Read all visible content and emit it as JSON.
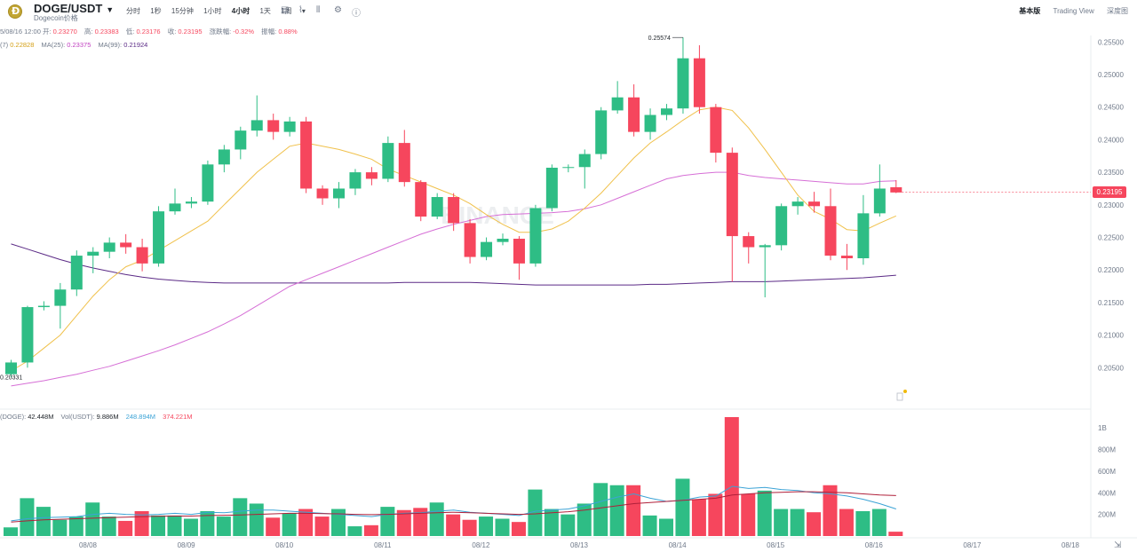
{
  "header": {
    "pair": "DOGE/USDT",
    "pair_sub": "Dogecoin价格",
    "intervals": [
      "分时",
      "1秒",
      "15分钟",
      "1小时",
      "4小时",
      "1天",
      "1周"
    ],
    "active_interval": "4小时",
    "views": [
      "基本版",
      "Trading View",
      "深度图"
    ],
    "active_view": "基本版"
  },
  "ohlc": {
    "time": "5/08/16 12:00",
    "open_label": "开:",
    "open": "0.23270",
    "high_label": "高:",
    "high": "0.23383",
    "low_label": "低:",
    "low": "0.23176",
    "close_label": "收:",
    "close": "0.23195",
    "change_label": "涨跌幅:",
    "change": "-0.32%",
    "amp_label": "振幅:",
    "amp": "0.88%"
  },
  "ma": {
    "ma7_label": "(7)",
    "ma7": "0.22828",
    "ma25_label": "MA(25):",
    "ma25": "0.23375",
    "ma99_label": "MA(99):",
    "ma99": "0.21924"
  },
  "volume_legend": {
    "vol_doge_label": "(DOGE):",
    "vol_doge": "42.448M",
    "vol_usdt_label": "Vol(USDT):",
    "vol_usdt": "9.886M",
    "ma5": "248.894M",
    "ma10": "374.221M"
  },
  "price_axis": {
    "ticks": [
      "0.25500",
      "0.25000",
      "0.24500",
      "0.24000",
      "0.23500",
      "0.23000",
      "0.22500",
      "0.22000",
      "0.21500",
      "0.21000",
      "0.20500"
    ],
    "current_price": "0.23195"
  },
  "volume_axis": {
    "ticks": [
      "1B",
      "800M",
      "600M",
      "400M",
      "200M"
    ]
  },
  "time_axis": {
    "ticks": [
      "08/08",
      "08/09",
      "08/10",
      "08/11",
      "08/12",
      "08/13",
      "08/14",
      "08/15",
      "08/16",
      "08/17",
      "08/18"
    ]
  },
  "annotations": {
    "high_label": "0.25574",
    "low_label": "0.20331"
  },
  "watermark": "BINANCE",
  "colors": {
    "up": "#2ebd85",
    "down": "#f6465d",
    "ma7": "#f0c14b",
    "ma25": "#d66fd6",
    "ma99": "#5b2a86"
  },
  "chart_data": {
    "type": "candlestick",
    "interval": "4小时",
    "candles": [
      {
        "o": 0.204,
        "c": 0.2058,
        "h": 0.2062,
        "l": 0.2035
      },
      {
        "o": 0.2058,
        "c": 0.2143,
        "h": 0.2145,
        "l": 0.205
      },
      {
        "o": 0.2143,
        "c": 0.2145,
        "h": 0.2152,
        "l": 0.2138
      },
      {
        "o": 0.2145,
        "c": 0.217,
        "h": 0.218,
        "l": 0.211
      },
      {
        "o": 0.217,
        "c": 0.2222,
        "h": 0.223,
        "l": 0.216
      },
      {
        "o": 0.2222,
        "c": 0.2228,
        "h": 0.2235,
        "l": 0.2195
      },
      {
        "o": 0.2228,
        "c": 0.2242,
        "h": 0.225,
        "l": 0.2218
      },
      {
        "o": 0.2242,
        "c": 0.2235,
        "h": 0.2255,
        "l": 0.2225
      },
      {
        "o": 0.2235,
        "c": 0.221,
        "h": 0.2248,
        "l": 0.2198
      },
      {
        "o": 0.221,
        "c": 0.229,
        "h": 0.2298,
        "l": 0.2205
      },
      {
        "o": 0.229,
        "c": 0.2302,
        "h": 0.2325,
        "l": 0.2285
      },
      {
        "o": 0.2302,
        "c": 0.2305,
        "h": 0.2312,
        "l": 0.2295
      },
      {
        "o": 0.2305,
        "c": 0.2362,
        "h": 0.2368,
        "l": 0.23
      },
      {
        "o": 0.2362,
        "c": 0.2385,
        "h": 0.2392,
        "l": 0.235
      },
      {
        "o": 0.2385,
        "c": 0.2414,
        "h": 0.242,
        "l": 0.237
      },
      {
        "o": 0.2414,
        "c": 0.243,
        "h": 0.2468,
        "l": 0.2405
      },
      {
        "o": 0.243,
        "c": 0.2412,
        "h": 0.244,
        "l": 0.24
      },
      {
        "o": 0.2412,
        "c": 0.2428,
        "h": 0.2435,
        "l": 0.2405
      },
      {
        "o": 0.2428,
        "c": 0.2325,
        "h": 0.2435,
        "l": 0.2318
      },
      {
        "o": 0.2325,
        "c": 0.231,
        "h": 0.233,
        "l": 0.23
      },
      {
        "o": 0.231,
        "c": 0.2325,
        "h": 0.2335,
        "l": 0.2295
      },
      {
        "o": 0.2325,
        "c": 0.235,
        "h": 0.2355,
        "l": 0.2315
      },
      {
        "o": 0.235,
        "c": 0.234,
        "h": 0.2358,
        "l": 0.233
      },
      {
        "o": 0.234,
        "c": 0.2395,
        "h": 0.2405,
        "l": 0.2335
      },
      {
        "o": 0.2395,
        "c": 0.2335,
        "h": 0.2415,
        "l": 0.2328
      },
      {
        "o": 0.2335,
        "c": 0.2282,
        "h": 0.2338,
        "l": 0.2275
      },
      {
        "o": 0.2282,
        "c": 0.2312,
        "h": 0.2318,
        "l": 0.2278
      },
      {
        "o": 0.2312,
        "c": 0.2272,
        "h": 0.2318,
        "l": 0.226
      },
      {
        "o": 0.2272,
        "c": 0.222,
        "h": 0.2278,
        "l": 0.221
      },
      {
        "o": 0.222,
        "c": 0.2243,
        "h": 0.225,
        "l": 0.2215
      },
      {
        "o": 0.2243,
        "c": 0.2248,
        "h": 0.2256,
        "l": 0.2238
      },
      {
        "o": 0.2248,
        "c": 0.221,
        "h": 0.2252,
        "l": 0.2185
      },
      {
        "o": 0.221,
        "c": 0.2295,
        "h": 0.23,
        "l": 0.2205
      },
      {
        "o": 0.2295,
        "c": 0.2357,
        "h": 0.2362,
        "l": 0.229
      },
      {
        "o": 0.2357,
        "c": 0.2358,
        "h": 0.2362,
        "l": 0.235
      },
      {
        "o": 0.2358,
        "c": 0.2378,
        "h": 0.2385,
        "l": 0.2325
      },
      {
        "o": 0.2378,
        "c": 0.2445,
        "h": 0.245,
        "l": 0.237
      },
      {
        "o": 0.2445,
        "c": 0.2465,
        "h": 0.249,
        "l": 0.244
      },
      {
        "o": 0.2465,
        "c": 0.2412,
        "h": 0.2485,
        "l": 0.2405
      },
      {
        "o": 0.2412,
        "c": 0.2438,
        "h": 0.2448,
        "l": 0.24
      },
      {
        "o": 0.2438,
        "c": 0.2448,
        "h": 0.2455,
        "l": 0.243
      },
      {
        "o": 0.2448,
        "c": 0.2525,
        "h": 0.2557,
        "l": 0.244
      },
      {
        "o": 0.2525,
        "c": 0.245,
        "h": 0.2545,
        "l": 0.244
      },
      {
        "o": 0.245,
        "c": 0.238,
        "h": 0.2455,
        "l": 0.2365
      },
      {
        "o": 0.238,
        "c": 0.2252,
        "h": 0.2388,
        "l": 0.2182
      },
      {
        "o": 0.2252,
        "c": 0.2235,
        "h": 0.2258,
        "l": 0.221
      },
      {
        "o": 0.2235,
        "c": 0.2238,
        "h": 0.224,
        "l": 0.2158
      },
      {
        "o": 0.2238,
        "c": 0.2298,
        "h": 0.2302,
        "l": 0.223
      },
      {
        "o": 0.2298,
        "c": 0.2305,
        "h": 0.2312,
        "l": 0.2285
      },
      {
        "o": 0.2305,
        "c": 0.2298,
        "h": 0.232,
        "l": 0.2288
      },
      {
        "o": 0.2298,
        "c": 0.2222,
        "h": 0.2325,
        "l": 0.2215
      },
      {
        "o": 0.2222,
        "c": 0.2218,
        "h": 0.224,
        "l": 0.22
      },
      {
        "o": 0.2218,
        "c": 0.2287,
        "h": 0.2315,
        "l": 0.2208
      },
      {
        "o": 0.2287,
        "c": 0.2325,
        "h": 0.2362,
        "l": 0.2282
      },
      {
        "o": 0.2327,
        "c": 0.2319,
        "h": 0.2338,
        "l": 0.2318
      }
    ],
    "volume": [
      80,
      350,
      270,
      150,
      180,
      310,
      180,
      140,
      230,
      190,
      190,
      160,
      230,
      180,
      350,
      300,
      170,
      210,
      250,
      180,
      250,
      90,
      100,
      270,
      240,
      260,
      310,
      200,
      150,
      180,
      160,
      130,
      430,
      250,
      200,
      300,
      490,
      470,
      470,
      190,
      160,
      530,
      340,
      390,
      1100,
      390,
      420,
      250,
      250,
      220,
      470,
      250,
      230,
      250,
      40
    ],
    "ma7": [
      0.2045,
      0.206,
      0.208,
      0.21,
      0.213,
      0.216,
      0.2185,
      0.2205,
      0.2215,
      0.223,
      0.2245,
      0.226,
      0.2275,
      0.23,
      0.2325,
      0.235,
      0.237,
      0.239,
      0.2395,
      0.239,
      0.2385,
      0.2378,
      0.237,
      0.2355,
      0.2345,
      0.2335,
      0.2325,
      0.2315,
      0.2302,
      0.2285,
      0.227,
      0.2258,
      0.2258,
      0.2263,
      0.2275,
      0.2295,
      0.2318,
      0.2345,
      0.2372,
      0.2395,
      0.2412,
      0.243,
      0.2446,
      0.245,
      0.2445,
      0.2418,
      0.2385,
      0.235,
      0.2315,
      0.229,
      0.2278,
      0.2262,
      0.226,
      0.2272,
      0.2283
    ],
    "ma25": [
      0.2022,
      0.2026,
      0.203,
      0.2035,
      0.204,
      0.2046,
      0.2052,
      0.206,
      0.2068,
      0.2076,
      0.2085,
      0.2095,
      0.2105,
      0.2117,
      0.213,
      0.2145,
      0.216,
      0.2175,
      0.2185,
      0.2195,
      0.2205,
      0.2215,
      0.2225,
      0.2235,
      0.2245,
      0.2255,
      0.2263,
      0.227,
      0.2276,
      0.2282,
      0.2285,
      0.2286,
      0.2287,
      0.2288,
      0.229,
      0.2294,
      0.23,
      0.231,
      0.232,
      0.233,
      0.234,
      0.2345,
      0.2348,
      0.235,
      0.235,
      0.2345,
      0.2342,
      0.234,
      0.2338,
      0.2336,
      0.2334,
      0.2332,
      0.2332,
      0.2336,
      0.2337
    ],
    "ma99": [
      0.224,
      0.2232,
      0.2224,
      0.2216,
      0.2209,
      0.2203,
      0.2198,
      0.2193,
      0.2189,
      0.2186,
      0.2184,
      0.2182,
      0.2181,
      0.218,
      0.218,
      0.218,
      0.218,
      0.218,
      0.218,
      0.218,
      0.218,
      0.218,
      0.218,
      0.218,
      0.2181,
      0.2181,
      0.2181,
      0.2181,
      0.2181,
      0.218,
      0.2179,
      0.2178,
      0.2177,
      0.2177,
      0.2177,
      0.2177,
      0.2177,
      0.2177,
      0.2177,
      0.2178,
      0.2178,
      0.2179,
      0.218,
      0.2181,
      0.2182,
      0.2182,
      0.2182,
      0.2183,
      0.2184,
      0.2185,
      0.2186,
      0.2187,
      0.2188,
      0.219,
      0.2192
    ],
    "ylim": [
      0.2015,
      0.256
    ],
    "volume_ylim": [
      0,
      1100
    ],
    "vol_ma5": [
      140,
      160,
      170,
      175,
      180,
      200,
      210,
      200,
      195,
      200,
      210,
      200,
      220,
      215,
      230,
      240,
      240,
      230,
      220,
      210,
      200,
      190,
      180,
      200,
      210,
      215,
      230,
      240,
      220,
      210,
      200,
      190,
      230,
      240,
      250,
      280,
      320,
      360,
      390,
      350,
      320,
      330,
      360,
      370,
      460,
      440,
      450,
      430,
      420,
      400,
      390,
      370,
      340,
      300,
      250
    ],
    "vol_ma10": [
      130,
      140,
      150,
      155,
      160,
      165,
      170,
      175,
      180,
      182,
      185,
      185,
      190,
      192,
      195,
      200,
      205,
      210,
      210,
      208,
      205,
      200,
      198,
      200,
      205,
      210,
      215,
      220,
      215,
      210,
      205,
      200,
      205,
      215,
      225,
      240,
      260,
      280,
      300,
      310,
      320,
      330,
      340,
      350,
      380,
      390,
      400,
      405,
      410,
      410,
      405,
      400,
      390,
      380,
      374
    ]
  }
}
